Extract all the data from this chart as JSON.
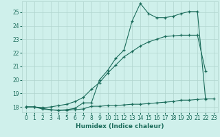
{
  "title": "",
  "xlabel": "Humidex (Indice chaleur)",
  "ylabel": "",
  "background_color": "#cff0eb",
  "grid_color": "#b0d4ce",
  "line_color": "#1a6b5a",
  "xlim": [
    -0.5,
    23.5
  ],
  "ylim": [
    17.6,
    25.8
  ],
  "yticks": [
    18,
    19,
    20,
    21,
    22,
    23,
    24,
    25
  ],
  "xticks": [
    0,
    1,
    2,
    3,
    4,
    5,
    6,
    7,
    8,
    9,
    10,
    11,
    12,
    13,
    14,
    15,
    16,
    17,
    18,
    19,
    20,
    21,
    22,
    23
  ],
  "line1_x": [
    0,
    1,
    2,
    3,
    4,
    5,
    6,
    7,
    8,
    9,
    10,
    11,
    12,
    13,
    14,
    15,
    16,
    17,
    18,
    19,
    20,
    21,
    22,
    23
  ],
  "line1_y": [
    18.0,
    18.0,
    17.9,
    17.8,
    17.75,
    17.75,
    17.8,
    17.85,
    18.05,
    18.05,
    18.1,
    18.1,
    18.15,
    18.2,
    18.2,
    18.25,
    18.3,
    18.35,
    18.4,
    18.5,
    18.5,
    18.55,
    18.6,
    18.6
  ],
  "line2_x": [
    0,
    1,
    2,
    3,
    4,
    5,
    6,
    7,
    8,
    9,
    10,
    11,
    12,
    13,
    14,
    15,
    16,
    17,
    18,
    19,
    20,
    21,
    22
  ],
  "line2_y": [
    18.0,
    18.0,
    17.95,
    18.0,
    18.1,
    18.2,
    18.4,
    18.7,
    19.3,
    19.8,
    20.5,
    21.1,
    21.7,
    22.1,
    22.5,
    22.8,
    23.0,
    23.2,
    23.25,
    23.3,
    23.3,
    23.3,
    20.65
  ],
  "line3_x": [
    0,
    1,
    2,
    3,
    4,
    5,
    6,
    7,
    8,
    9,
    10,
    11,
    12,
    13,
    14,
    15,
    16,
    17,
    18,
    19,
    20,
    21,
    22
  ],
  "line3_y": [
    18.0,
    18.0,
    17.85,
    17.78,
    17.75,
    17.8,
    17.9,
    18.3,
    18.3,
    20.0,
    20.7,
    21.6,
    22.2,
    24.35,
    25.65,
    24.9,
    24.6,
    24.6,
    24.7,
    24.9,
    25.05,
    25.05,
    18.55
  ]
}
